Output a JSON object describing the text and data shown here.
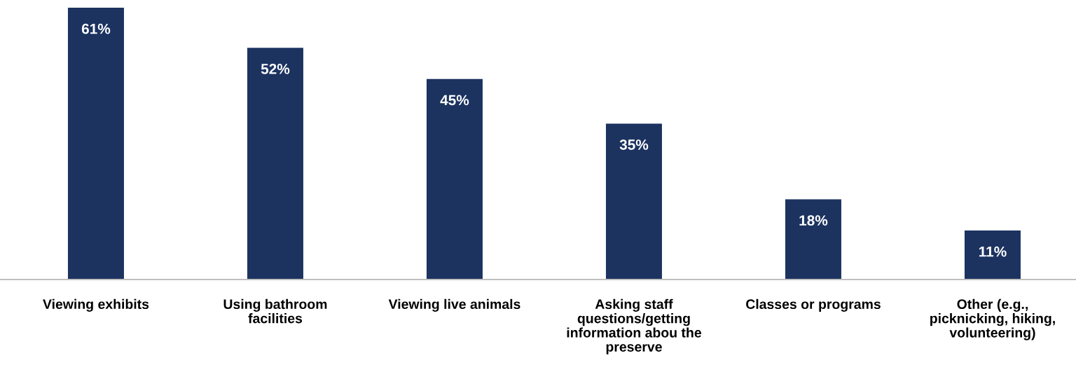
{
  "chart_data": {
    "type": "bar",
    "categories": [
      "Viewing exhibits",
      "Using bathroom\nfacilities",
      "Viewing live animals",
      "Asking staff\nquestions/getting\ninformation abou the\npreserve",
      "Classes or programs",
      "Other (e.g.,\npicknicking, hiking,\nvolunteering)"
    ],
    "values": [
      61,
      52,
      45,
      35,
      18,
      11
    ],
    "value_labels": [
      "61%",
      "52%",
      "45%",
      "35%",
      "18%",
      "11%"
    ],
    "color": "#1c3360",
    "grid": false,
    "legend": false
  }
}
